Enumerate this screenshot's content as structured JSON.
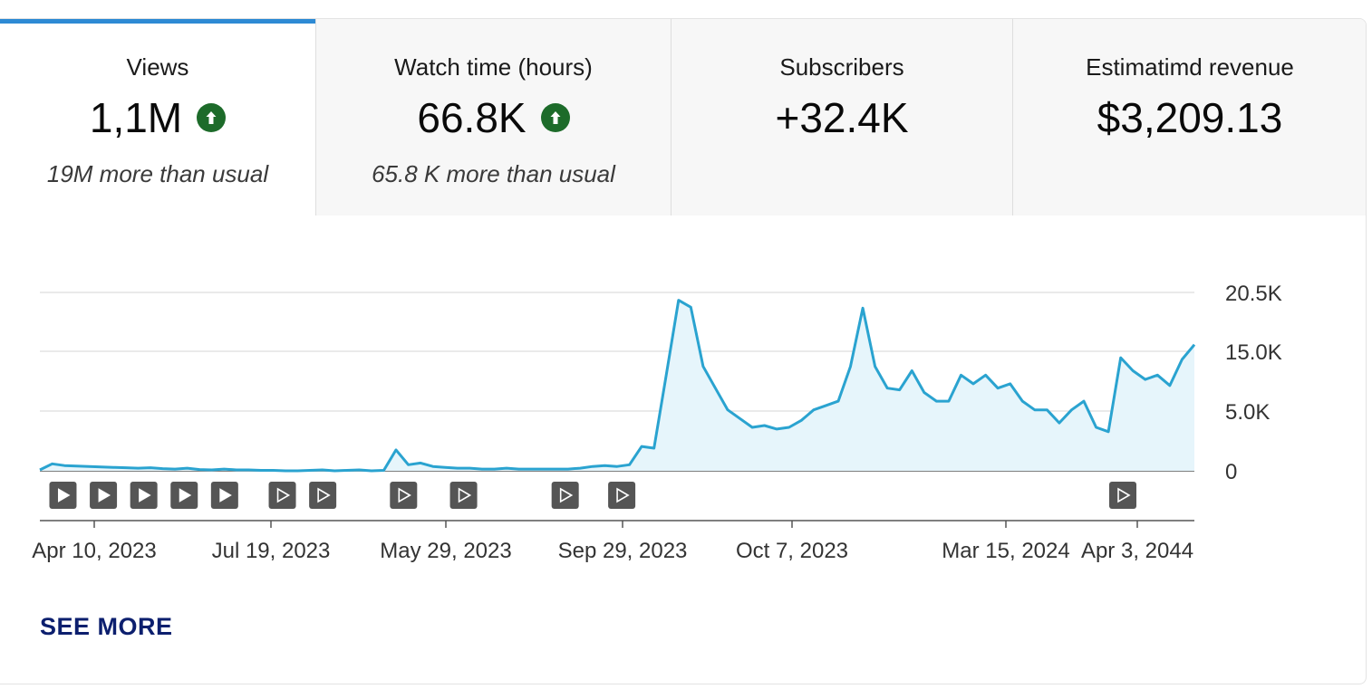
{
  "tabs": [
    {
      "label": "Views",
      "value": "1,1M",
      "trend": "up",
      "sub": "19M more than usual"
    },
    {
      "label": "Watch time (hours)",
      "value": "66.8K",
      "trend": "up",
      "sub": "65.8 K more than usual"
    },
    {
      "label": "Subscribers",
      "value": "+32.4K"
    },
    {
      "label": "Estimatimd revenue",
      "value": "$3,209.13"
    }
  ],
  "colors": {
    "accent": "#2d8ad4",
    "line": "#2aa3d0",
    "area": "#e6f5fb",
    "trend_up": "#1d6b2a",
    "marker": "#555555"
  },
  "chart_data": {
    "type": "area",
    "y_ticks": [
      "20.5K",
      "15.0K",
      "5.0K",
      "0"
    ],
    "x_ticks": [
      "Apr 10, 2023",
      "Jul 19, 2023",
      "May 29, 2023",
      "Sep 29, 2023",
      "Oct 7, 2023",
      "Mar 15, 2024",
      "Apr 3, 2044"
    ],
    "grid": true,
    "values": [
      0.1,
      0.8,
      0.6,
      0.55,
      0.5,
      0.45,
      0.4,
      0.35,
      0.3,
      0.35,
      0.25,
      0.2,
      0.3,
      0.15,
      0.1,
      0.2,
      0.1,
      0.1,
      0.05,
      0.05,
      0.0,
      0.0,
      0.05,
      0.1,
      0.0,
      0.05,
      0.1,
      0.0,
      0.05,
      2.4,
      0.7,
      0.9,
      0.5,
      0.4,
      0.3,
      0.3,
      0.2,
      0.2,
      0.3,
      0.2,
      0.2,
      0.2,
      0.2,
      0.2,
      0.3,
      0.5,
      0.6,
      0.5,
      0.7,
      2.8,
      2.6,
      11.0,
      19.6,
      18.8,
      12.0,
      9.5,
      7.0,
      6.0,
      5.0,
      5.2,
      4.8,
      5.0,
      5.8,
      7.0,
      7.5,
      8.0,
      12.0,
      18.7,
      12.0,
      9.5,
      9.3,
      11.5,
      9.0,
      8.0,
      8.0,
      11.0,
      10.0,
      11.0,
      9.5,
      10.0,
      8.0,
      7.0,
      7.0,
      5.5,
      7.0,
      8.0,
      5.0,
      4.5,
      13.0,
      11.5,
      10.5,
      11.0,
      9.8,
      12.8,
      14.5
    ],
    "markers": [
      0.02,
      0.055,
      0.09,
      0.125,
      0.16,
      0.21,
      0.245,
      0.315,
      0.367,
      0.455,
      0.504,
      0.938
    ],
    "markers_active_count": 5
  },
  "see_more": "SEE MORE"
}
